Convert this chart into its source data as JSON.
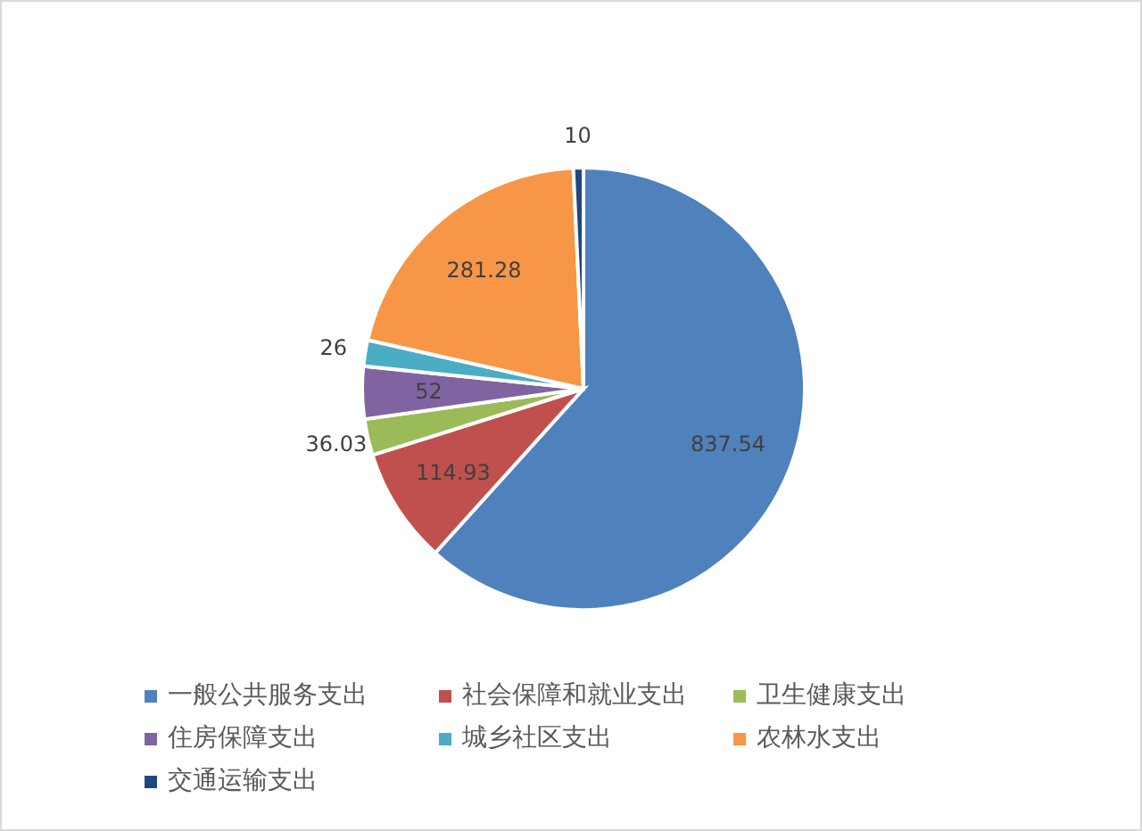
{
  "chart_data": {
    "type": "pie",
    "categories": [
      "一般公共服务支出",
      "社会保障和就业支出",
      "卫生健康支出",
      "住房保障支出",
      "城乡社区支出",
      "农林水支出",
      "交通运输支出"
    ],
    "values": [
      837.54,
      114.93,
      36.03,
      52,
      26,
      281.28,
      10
    ],
    "colors": [
      "#4f81bd",
      "#c0504d",
      "#9bbb59",
      "#8064a2",
      "#4bacc6",
      "#f79646",
      "#1f497d"
    ],
    "data_labels": true,
    "legend": "bottom"
  }
}
